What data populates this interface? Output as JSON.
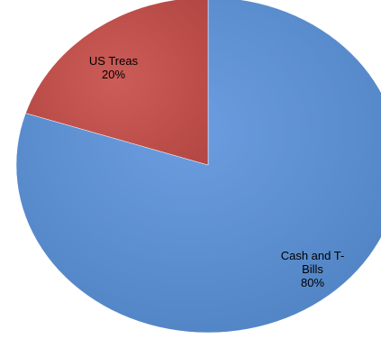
{
  "chart_data": {
    "type": "pie",
    "title": "",
    "legend": "none",
    "slices": [
      {
        "name": "Cash and T-Bills",
        "value": 80,
        "color": "#5a8fd0",
        "label_lines": [
          "Cash and T-",
          "Bills",
          "80%"
        ]
      },
      {
        "name": "US Treas",
        "value": 20,
        "color": "#c0504d",
        "label_lines": [
          "US Treas",
          "20%"
        ]
      }
    ]
  }
}
